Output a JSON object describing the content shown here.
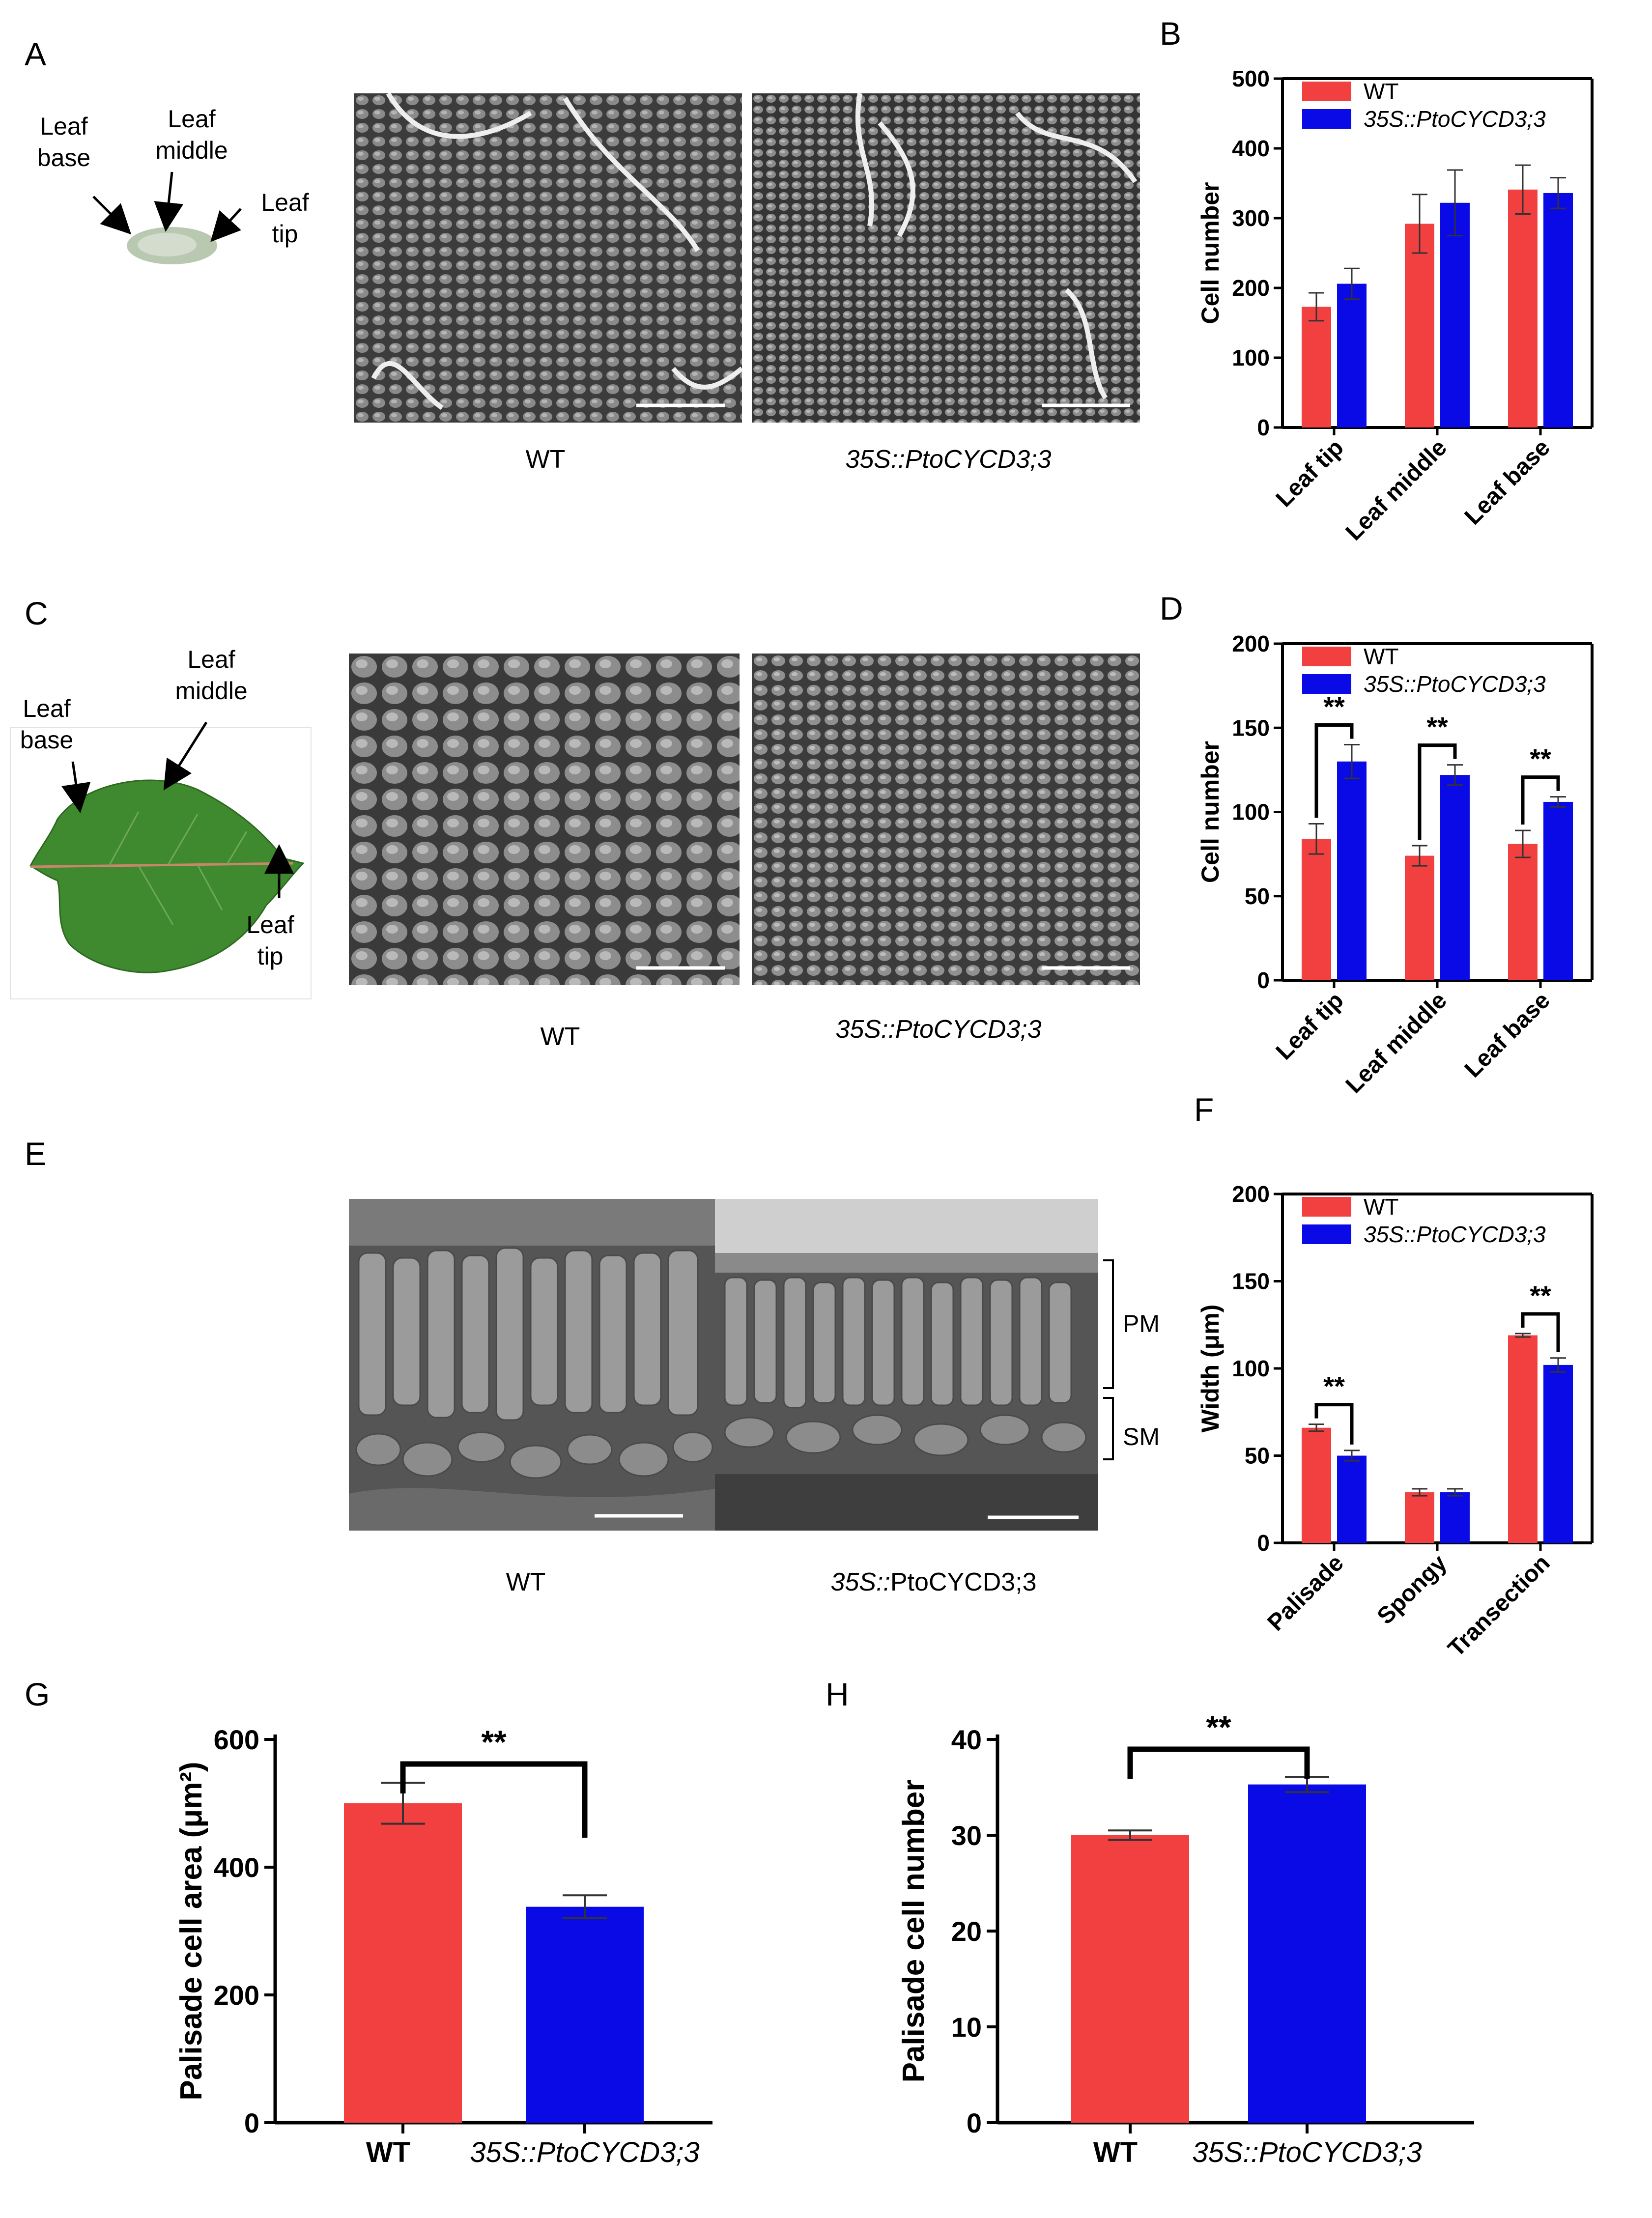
{
  "colors": {
    "wt": "#f24040",
    "ox": "#0a0ae6",
    "axis": "#000000",
    "sem": "#4a4a4a",
    "leaf": "#3f8a2e"
  },
  "panel_labels": {
    "a": "A",
    "b": "B",
    "c": "C",
    "d": "D",
    "e": "E",
    "f": "F",
    "g": "G",
    "h": "H"
  },
  "leaf_labels": {
    "a_base": "Leaf\nbase",
    "a_middle": "Leaf\nmiddle",
    "a_tip": "Leaf\ntip",
    "c_base": "Leaf\nbase",
    "c_middle": "Leaf\nmiddle",
    "c_tip": "Leaf\ntip"
  },
  "captions": {
    "a_wt": "WT",
    "a_ox": "35S::PtoCYCD3;3",
    "c_wt": "WT",
    "c_ox": "35S::PtoCYCD3;3",
    "e_wt": "WT",
    "e_ox_prefix": "35S::",
    "e_ox_suffix": "PtoCYCD3;3",
    "pm": "PM",
    "sm": "SM"
  },
  "chart_data": [
    {
      "id": "B",
      "type": "bar",
      "ylabel": "Cell number",
      "ylim": [
        0,
        500
      ],
      "yticks": [
        "0",
        "100",
        "200",
        "300",
        "400",
        "500"
      ],
      "categories": [
        "Leaf tip",
        "Leaf middle",
        "Leaf base"
      ],
      "series": [
        {
          "name": "WT",
          "values": [
            173,
            292,
            341
          ],
          "errors": [
            20,
            42,
            35
          ]
        },
        {
          "name": "35S::PtoCYCD3;3",
          "values": [
            206,
            322,
            336
          ],
          "errors": [
            22,
            47,
            22
          ]
        }
      ],
      "significance": []
    },
    {
      "id": "D",
      "type": "bar",
      "ylabel": "Cell number",
      "ylim": [
        0,
        200
      ],
      "yticks": [
        "0",
        "50",
        "100",
        "150",
        "200"
      ],
      "categories": [
        "Leaf tip",
        "Leaf middle",
        "Leaf base"
      ],
      "series": [
        {
          "name": "WT",
          "values": [
            84,
            74,
            81
          ],
          "errors": [
            9,
            6,
            8
          ]
        },
        {
          "name": "35S::PtoCYCD3;3",
          "values": [
            130,
            122,
            106
          ],
          "errors": [
            10,
            6,
            3
          ]
        }
      ],
      "significance": [
        "**",
        "**",
        "**"
      ]
    },
    {
      "id": "F",
      "type": "bar",
      "ylabel": "Width (μm)",
      "ylim": [
        0,
        200
      ],
      "yticks": [
        "0",
        "50",
        "100",
        "150",
        "200"
      ],
      "categories": [
        "Palisade",
        "Spongy",
        "Transection"
      ],
      "series": [
        {
          "name": "WT",
          "values": [
            66,
            29,
            119
          ],
          "errors": [
            2,
            2,
            1
          ]
        },
        {
          "name": "35S::PtoCYCD3;3",
          "values": [
            50,
            29,
            102
          ],
          "errors": [
            3,
            2,
            4
          ]
        }
      ],
      "significance": [
        "**",
        "",
        "**"
      ]
    },
    {
      "id": "G",
      "type": "bar",
      "ylabel": "Palisade cell  area (μm²)",
      "ylim": [
        0,
        600
      ],
      "yticks": [
        "0",
        "200",
        "400",
        "600"
      ],
      "categories": [
        "WT",
        "35S::PtoCYCD3;3"
      ],
      "values": [
        500,
        338
      ],
      "errors": [
        32,
        18
      ],
      "significance": "**"
    },
    {
      "id": "H",
      "type": "bar",
      "ylabel": "Palisade cell  number",
      "ylim": [
        0,
        40
      ],
      "yticks": [
        "0",
        "10",
        "20",
        "30",
        "40"
      ],
      "categories": [
        "WT",
        "35S::PtoCYCD3;3"
      ],
      "values": [
        30,
        35.3
      ],
      "errors": [
        0.5,
        0.8
      ],
      "significance": "**"
    }
  ]
}
